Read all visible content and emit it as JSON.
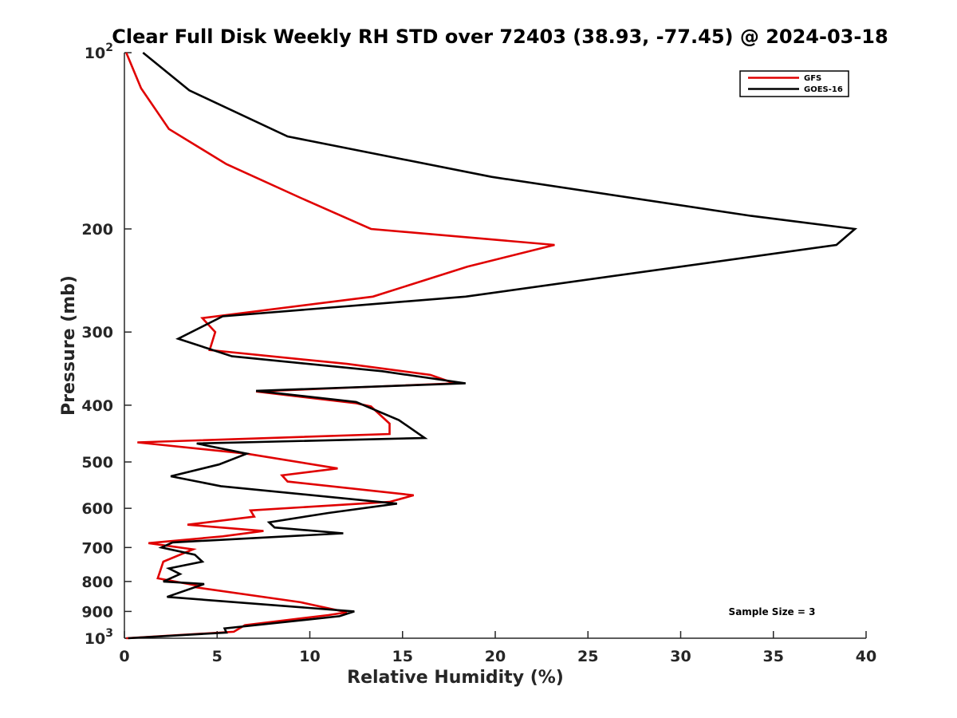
{
  "chart_data": {
    "type": "line",
    "title": "Clear Full Disk Weekly RH STD over 72403 (38.93, -77.45) @ 2024-03-18",
    "xlabel": "Relative Humidity (%)",
    "ylabel": "Pressure (mb)",
    "xlim": [
      0,
      40
    ],
    "ylim": [
      100,
      1000
    ],
    "y_scale": "log",
    "y_reversed": true,
    "x_ticks": [
      "0",
      "5",
      "10",
      "15",
      "20",
      "25",
      "30",
      "35",
      "40"
    ],
    "y_ticks": [
      {
        "value": 100,
        "base": "10",
        "exp": "2"
      },
      {
        "value": 200,
        "label": "200"
      },
      {
        "value": 300,
        "label": "300"
      },
      {
        "value": 400,
        "label": "400"
      },
      {
        "value": 500,
        "label": "500"
      },
      {
        "value": 600,
        "label": "600"
      },
      {
        "value": 700,
        "label": "700"
      },
      {
        "value": 800,
        "label": "800"
      },
      {
        "value": 900,
        "label": "900"
      },
      {
        "value": 1000,
        "base": "10",
        "exp": "3"
      }
    ],
    "legend_position": "top-right",
    "annotation": "Sample Size = 3",
    "series": [
      {
        "name": "GFS",
        "color": "#e00000",
        "points": [
          [
            0.1,
            100
          ],
          [
            0.9,
            115
          ],
          [
            2.4,
            135
          ],
          [
            5.5,
            155
          ],
          [
            9.5,
            177
          ],
          [
            13.3,
            200
          ],
          [
            23.2,
            213
          ],
          [
            18.5,
            232
          ],
          [
            13.4,
            261
          ],
          [
            4.2,
            284
          ],
          [
            4.9,
            300
          ],
          [
            4.6,
            322
          ],
          [
            12.0,
            340
          ],
          [
            16.5,
            355
          ],
          [
            17.8,
            367
          ],
          [
            7.1,
            379
          ],
          [
            12.5,
            397
          ],
          [
            13.3,
            402
          ],
          [
            14.3,
            430
          ],
          [
            14.3,
            448
          ],
          [
            0.7,
            463
          ],
          [
            6.6,
            484
          ],
          [
            11.5,
            513
          ],
          [
            8.5,
            527
          ],
          [
            8.8,
            540
          ],
          [
            15.6,
            570
          ],
          [
            14.3,
            585
          ],
          [
            6.8,
            605
          ],
          [
            7.0,
            620
          ],
          [
            3.4,
            640
          ],
          [
            7.5,
            656
          ],
          [
            5.3,
            670
          ],
          [
            1.3,
            688
          ],
          [
            3.7,
            705
          ],
          [
            2.1,
            740
          ],
          [
            1.8,
            790
          ],
          [
            4.0,
            814
          ],
          [
            3.8,
            818
          ],
          [
            9.5,
            868
          ],
          [
            12.0,
            903
          ],
          [
            11.0,
            913
          ],
          [
            6.5,
            950
          ],
          [
            5.9,
            975
          ],
          [
            0.1,
            1000
          ]
        ]
      },
      {
        "name": "GOES-16",
        "color": "#000000",
        "points": [
          [
            1.0,
            100
          ],
          [
            3.5,
            116
          ],
          [
            8.8,
            139
          ],
          [
            19.8,
            163
          ],
          [
            33.8,
            190
          ],
          [
            39.4,
            200
          ],
          [
            38.4,
            213
          ],
          [
            18.4,
            261
          ],
          [
            5.3,
            282
          ],
          [
            2.9,
            308
          ],
          [
            5.8,
            330
          ],
          [
            13.9,
            350
          ],
          [
            18.4,
            367
          ],
          [
            7.1,
            378
          ],
          [
            12.5,
            395
          ],
          [
            14.8,
            424
          ],
          [
            16.2,
            455
          ],
          [
            3.9,
            465
          ],
          [
            6.6,
            484
          ],
          [
            5.1,
            505
          ],
          [
            2.5,
            529
          ],
          [
            5.2,
            550
          ],
          [
            14.7,
            589
          ],
          [
            11.0,
            611
          ],
          [
            7.8,
            634
          ],
          [
            8.1,
            647
          ],
          [
            11.8,
            662
          ],
          [
            2.6,
            686
          ],
          [
            2.0,
            700
          ],
          [
            3.8,
            720
          ],
          [
            4.2,
            740
          ],
          [
            2.4,
            760
          ],
          [
            3.0,
            777
          ],
          [
            2.1,
            800
          ],
          [
            4.3,
            808
          ],
          [
            2.3,
            850
          ],
          [
            12.4,
            900
          ],
          [
            11.6,
            917
          ],
          [
            5.4,
            962
          ],
          [
            5.5,
            978
          ],
          [
            0.2,
            1000
          ]
        ]
      }
    ]
  }
}
